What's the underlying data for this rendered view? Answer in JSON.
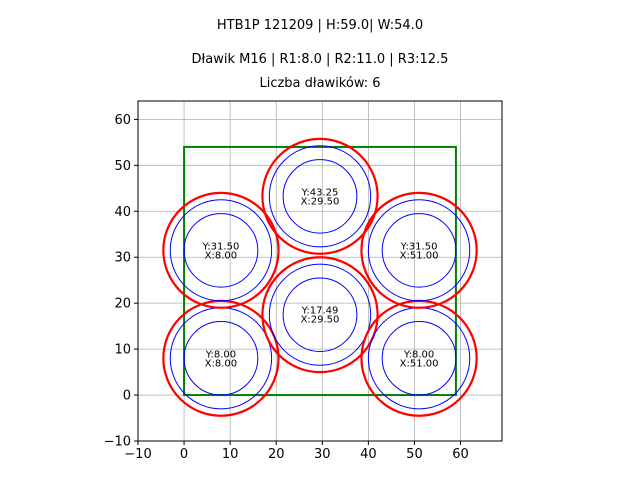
{
  "chart_data": {
    "type": "scatter",
    "title_lines": [
      "HTB1P 121209 | H:59.0| W:54.0",
      "Dławik M16 | R1:8.0 | R2:11.0 | R3:12.5",
      "Liczba dławików: 6"
    ],
    "xlim": [
      -10,
      69
    ],
    "ylim": [
      -10,
      64
    ],
    "x_ticks": [
      -10,
      0,
      10,
      20,
      30,
      40,
      50,
      60
    ],
    "y_ticks": [
      -10,
      0,
      10,
      20,
      30,
      40,
      50,
      60
    ],
    "grid": true,
    "box": {
      "x0": 0,
      "y0": 0,
      "x1": 59,
      "y1": 54,
      "color": "#008000"
    },
    "radii": {
      "r1": 8.0,
      "r2": 11.0,
      "r3": 12.5
    },
    "colors": {
      "inner": "#0000ff",
      "outer": "#ff0000"
    },
    "glands": [
      {
        "x": 8.0,
        "y": 8.0,
        "label_y": "Y:8.00",
        "label_x": "X:8.00"
      },
      {
        "x": 29.5,
        "y": 17.49,
        "label_y": "Y:17.49",
        "label_x": "X:29.50"
      },
      {
        "x": 51.0,
        "y": 8.0,
        "label_y": "Y:8.00",
        "label_x": "X:51.00"
      },
      {
        "x": 8.0,
        "y": 31.5,
        "label_y": "Y:31.50",
        "label_x": "X:8.00"
      },
      {
        "x": 29.5,
        "y": 43.25,
        "label_y": "Y:43.25",
        "label_x": "X:29.50"
      },
      {
        "x": 51.0,
        "y": 31.5,
        "label_y": "Y:31.50",
        "label_x": "X:51.00"
      }
    ]
  }
}
